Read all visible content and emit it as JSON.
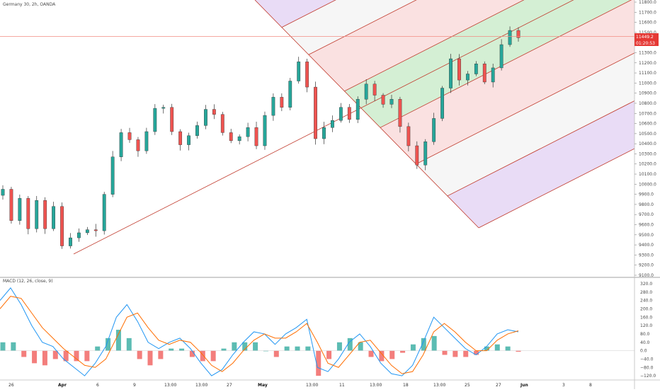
{
  "header": {
    "symbol_label": "Germany 30, 2h, OANDA"
  },
  "macd": {
    "label": "MACD (12, 26, close, 9)"
  },
  "price_badge": {
    "price": "11449.2",
    "countdown": "01:20:53"
  },
  "colors": {
    "up": "#26a69a",
    "down": "#ef5350",
    "wick": "#333333",
    "macd_line": "#2196f3",
    "signal_line": "#ff6d00",
    "hist_pos": "#26a69a",
    "hist_neg": "#ef5350",
    "badge_bg": "#e53935",
    "hline": "#f28b82",
    "separator": "#a0a0a0",
    "fork_red": "#c0392b",
    "fork_green": "#cdeccd",
    "fork_pink": "#f9dcdc",
    "fork_violet": "#e5d6f5",
    "fork_gray": "#f5f5f5"
  },
  "chart_data": [
    {
      "type": "candlestick",
      "title": "Germany 30, 2h, OANDA",
      "x_tick_labels": [
        "26",
        "Apr",
        "6",
        "9",
        "13:00",
        "13:00",
        "27",
        "May",
        "13:00",
        "11",
        "13:00",
        "18",
        "13:00",
        "25",
        "27",
        "Jun",
        "3",
        "8"
      ],
      "bold_x_tick_labels": [
        "Apr",
        "May",
        "Jun"
      ],
      "y_tick_labels": [
        "11800.0",
        "11700.0",
        "11600.0",
        "11500.0",
        "11300.0",
        "11200.0",
        "11100.0",
        "11000.0",
        "10900.0",
        "10800.0",
        "10700.0",
        "10600.0",
        "10500.0",
        "10400.0",
        "10300.0",
        "10200.0",
        "10100.0",
        "10000.0",
        "9900.0",
        "9800.0",
        "9700.0",
        "9600.0",
        "9500.0",
        "9400.0",
        "9300.0",
        "9200.0",
        "9100.0"
      ],
      "ylim": [
        9100,
        11800
      ],
      "last_price": 11449.2,
      "close_series": [
        9950,
        9640,
        9860,
        9560,
        9840,
        9560,
        9780,
        9390,
        9470,
        9520,
        9550,
        9540,
        9900,
        10270,
        10510,
        10440,
        10330,
        10520,
        10750,
        10760,
        10520,
        10390,
        10480,
        10580,
        10740,
        10690,
        10510,
        10430,
        10470,
        10560,
        10380,
        10680,
        10860,
        10760,
        11020,
        11210,
        10960,
        10450,
        10560,
        10630,
        10760,
        10640,
        10840,
        10990,
        10880,
        10790,
        10840,
        10570,
        10380,
        10190,
        10420,
        10650,
        10950,
        11240,
        11030,
        11090,
        11190,
        11010,
        11150,
        11380,
        11520,
        11449
      ],
      "pitchfork": {
        "pivots": [
          "9330 (Apr lows)",
          "11340 (late Apr high)",
          "10160 (mid May low)"
        ],
        "levels": [
          0,
          0.382,
          0.618,
          1,
          1.382,
          1.618,
          2
        ]
      }
    },
    {
      "type": "line",
      "title": "MACD (12, 26, close, 9)",
      "y_tick_labels": [
        "320.0",
        "280.0",
        "240.0",
        "200.0",
        "160.0",
        "120.0",
        "80.0",
        "40.0",
        "0.0",
        "−40.0",
        "−80.0",
        "−120.0"
      ],
      "ylim": [
        -140,
        330
      ],
      "series": [
        {
          "name": "MACD",
          "values": [
            240,
            300,
            220,
            120,
            40,
            20,
            -40,
            -80,
            -120,
            -60,
            20,
            160,
            220,
            140,
            40,
            10,
            40,
            60,
            10,
            -60,
            -120,
            -90,
            -20,
            40,
            90,
            80,
            30,
            80,
            110,
            150,
            -80,
            -100,
            -40,
            40,
            80,
            20,
            -60,
            -110,
            -120,
            -70,
            40,
            160,
            110,
            60,
            10,
            -20,
            20,
            80,
            100,
            90
          ]
        },
        {
          "name": "Signal",
          "values": [
            200,
            260,
            250,
            180,
            110,
            60,
            10,
            -30,
            -70,
            -80,
            -40,
            60,
            160,
            180,
            110,
            50,
            30,
            50,
            40,
            -10,
            -70,
            -100,
            -60,
            0,
            50,
            80,
            60,
            60,
            90,
            130,
            40,
            -60,
            -80,
            -20,
            40,
            50,
            -10,
            -70,
            -110,
            -100,
            -20,
            90,
            130,
            90,
            40,
            0,
            0,
            50,
            80,
            95
          ]
        }
      ],
      "histogram": [
        40,
        40,
        -30,
        -60,
        -70,
        -40,
        -50,
        -50,
        -50,
        20,
        60,
        100,
        60,
        -40,
        -70,
        -40,
        10,
        10,
        -30,
        -50,
        -50,
        10,
        40,
        40,
        40,
        0,
        -30,
        20,
        20,
        20,
        -120,
        -40,
        40,
        60,
        40,
        -30,
        -50,
        -40,
        -10,
        30,
        60,
        70,
        -20,
        -30,
        -30,
        -20,
        20,
        30,
        20,
        -5
      ]
    }
  ]
}
